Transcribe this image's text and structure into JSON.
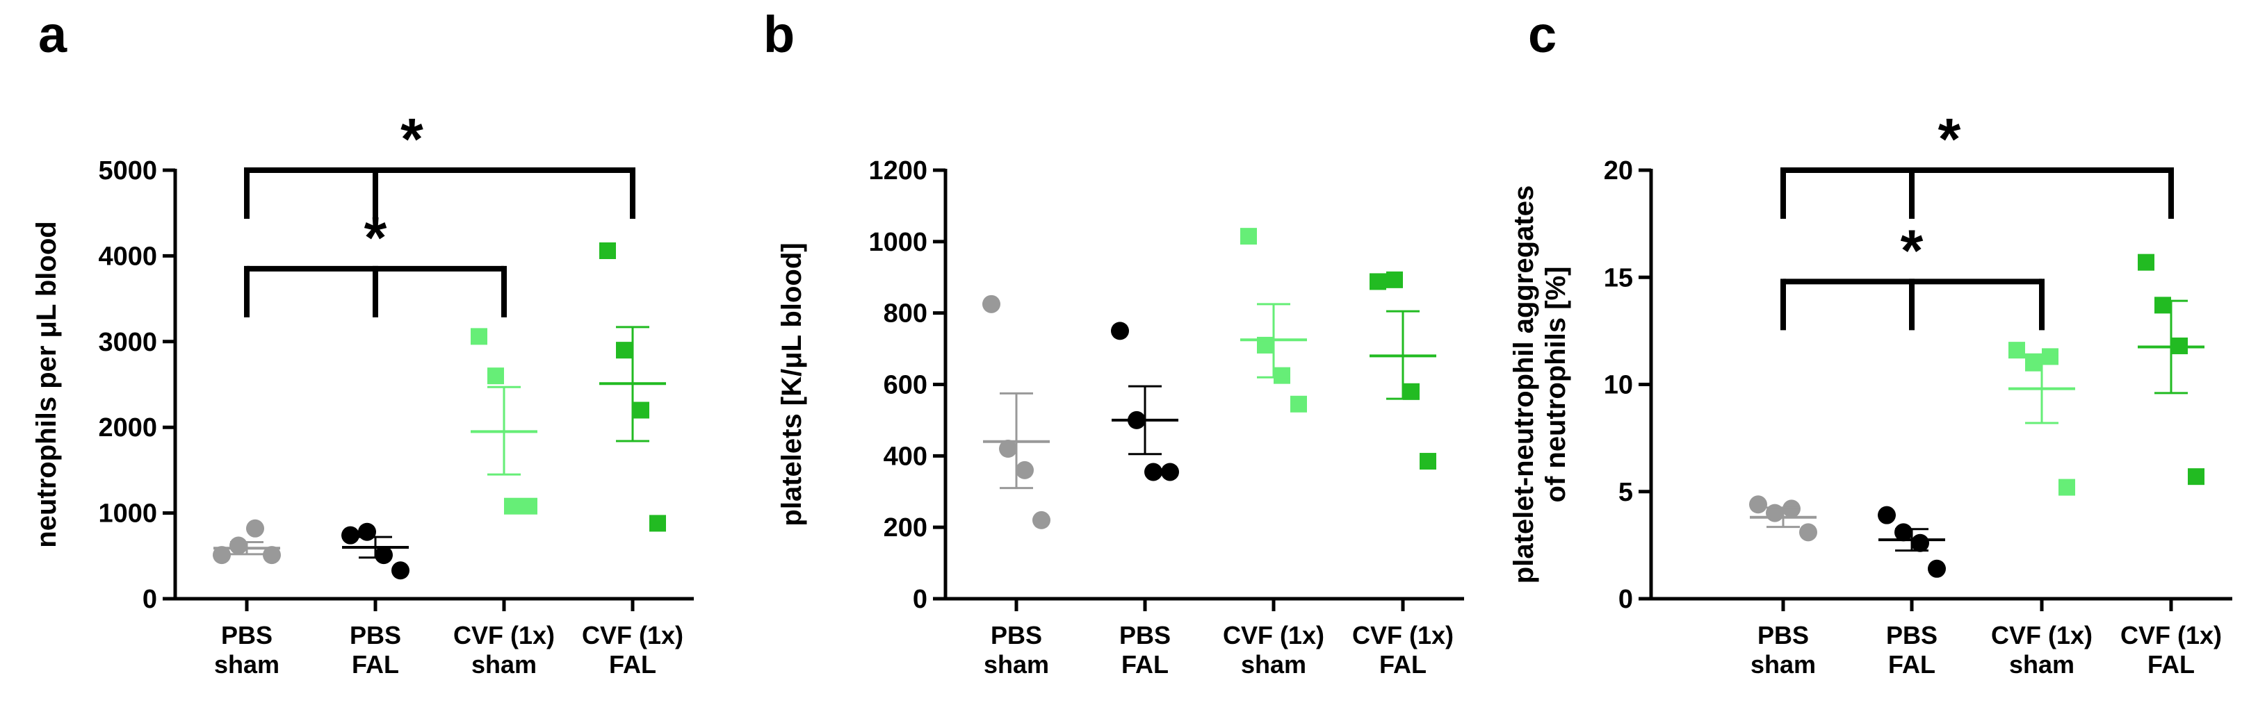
{
  "colors": {
    "pbs_sham": "#999999",
    "pbs_fal": "#000000",
    "cvf_sham": "#66ee77",
    "cvf_fal": "#22bb22",
    "axis": "#000000"
  },
  "categories": [
    [
      "PBS",
      "sham"
    ],
    [
      "PBS",
      "FAL"
    ],
    [
      "CVF (1x)",
      "sham"
    ],
    [
      "CVF (1x)",
      "FAL"
    ]
  ],
  "chart_data": [
    {
      "type": "scatter",
      "panel": "a",
      "title": "",
      "ylabel": [
        "neutrophils per μL blood"
      ],
      "ylim": [
        0,
        5000
      ],
      "yticks": [
        0,
        1000,
        2000,
        3000,
        4000,
        5000
      ],
      "grid": false,
      "groups": [
        {
          "name": "PBS sham",
          "points": [
            510,
            620,
            820,
            510
          ],
          "mean": 590,
          "sem_low": 520,
          "sem_high": 660
        },
        {
          "name": "PBS FAL",
          "points": [
            740,
            780,
            510,
            330
          ],
          "mean": 600,
          "sem_low": 480,
          "sem_high": 720
        },
        {
          "name": "CVF (1x) sham",
          "points": [
            3060,
            2600,
            1080,
            1080
          ],
          "mean": 1950,
          "sem_low": 1450,
          "sem_high": 2470
        },
        {
          "name": "CVF (1x) FAL",
          "points": [
            4060,
            2900,
            2200,
            880
          ],
          "mean": 2510,
          "sem_low": 1840,
          "sem_high": 3170
        }
      ],
      "significance": [
        {
          "label": "*",
          "from": [
            0,
            1
          ],
          "to": 3,
          "level": 5000,
          "top": 5000
        },
        {
          "label": "*",
          "from": [
            0,
            1
          ],
          "to": 2,
          "level": 3850,
          "top": 3850
        }
      ]
    },
    {
      "type": "scatter",
      "panel": "b",
      "title": "",
      "ylabel": [
        "platelets [K/μL blood]"
      ],
      "ylim": [
        0,
        1200
      ],
      "yticks": [
        0,
        200,
        400,
        600,
        800,
        1000,
        1200
      ],
      "grid": false,
      "groups": [
        {
          "name": "PBS sham",
          "points": [
            825,
            420,
            360,
            220
          ],
          "mean": 440,
          "sem_low": 310,
          "sem_high": 575
        },
        {
          "name": "PBS FAL",
          "points": [
            750,
            500,
            355,
            355
          ],
          "mean": 500,
          "sem_low": 405,
          "sem_high": 595
        },
        {
          "name": "CVF (1x) sham",
          "points": [
            1015,
            710,
            625,
            545
          ],
          "mean": 725,
          "sem_low": 620,
          "sem_high": 825
        },
        {
          "name": "CVF (1x) FAL",
          "points": [
            888,
            893,
            580,
            385
          ],
          "mean": 680,
          "sem_low": 560,
          "sem_high": 805
        }
      ],
      "significance": []
    },
    {
      "type": "scatter",
      "panel": "c",
      "title": "",
      "ylabel": [
        "platelet-neutrophil aggregates",
        "of neutrophils [%]"
      ],
      "ylim": [
        0,
        20
      ],
      "yticks": [
        0,
        5,
        10,
        15,
        20
      ],
      "grid": false,
      "groups": [
        {
          "name": "PBS sham",
          "points": [
            4.4,
            4.0,
            4.2,
            3.1
          ],
          "mean": 3.8,
          "sem_low": 3.35,
          "sem_high": 4.25
        },
        {
          "name": "PBS FAL",
          "points": [
            3.9,
            3.1,
            2.6,
            1.4
          ],
          "mean": 2.75,
          "sem_low": 2.25,
          "sem_high": 3.25
        },
        {
          "name": "CVF (1x) sham",
          "points": [
            11.6,
            11.0,
            11.3,
            5.2
          ],
          "mean": 9.8,
          "sem_low": 8.2,
          "sem_high": 11.4
        },
        {
          "name": "CVF (1x) FAL",
          "points": [
            15.7,
            13.7,
            11.8,
            5.7
          ],
          "mean": 11.75,
          "sem_low": 9.6,
          "sem_high": 13.9
        }
      ],
      "significance": [
        {
          "label": "*",
          "from": [
            0,
            1
          ],
          "to": 3,
          "level": 20,
          "top": 20
        },
        {
          "label": "*",
          "from": [
            0,
            1
          ],
          "to": 2,
          "level": 14.8,
          "top": 14.8
        }
      ]
    }
  ]
}
